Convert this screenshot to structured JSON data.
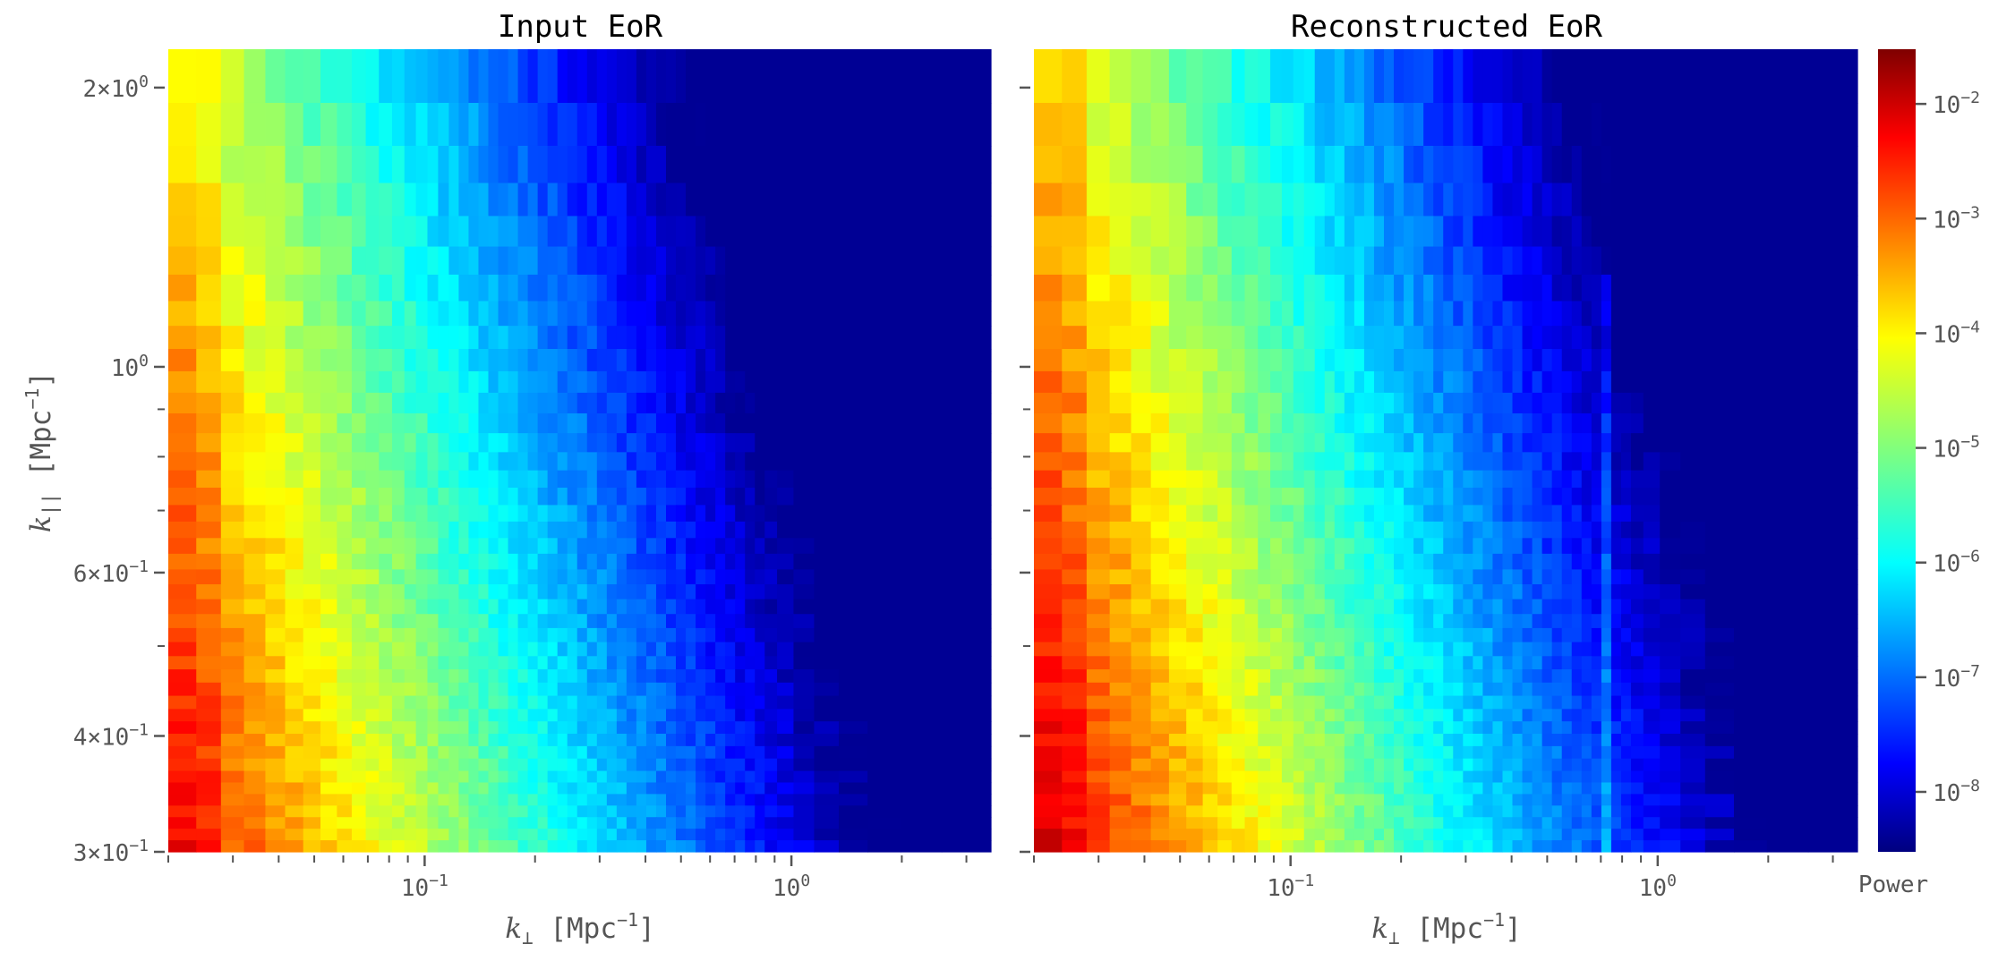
{
  "chart_data": [
    {
      "type": "heatmap",
      "title": "Input EoR",
      "xlabel_var": "k",
      "xlabel_sub": "⊥",
      "xlabel_unit": " [Mpc",
      "xlabel_exp": "−1",
      "xlabel_close": "]",
      "ylabel_var": "k",
      "ylabel_sub": "||",
      "ylabel_unit": " [Mpc",
      "ylabel_exp": "−1",
      "ylabel_close": "]",
      "x_scale": "log",
      "y_scale": "log",
      "xlim": [
        0.02,
        3.5
      ],
      "ylim": [
        0.3,
        2.2
      ],
      "x_ticks": [
        {
          "value": 0.1,
          "mantissa": "10",
          "exp": "−1"
        },
        {
          "value": 1,
          "mantissa": "10",
          "exp": "0"
        }
      ],
      "y_ticks": [
        {
          "value": 2,
          "mantissa": "2×10",
          "exp": "0"
        },
        {
          "value": 1,
          "mantissa": "10",
          "exp": "0"
        },
        {
          "value": 0.6,
          "mantissa": "6×10",
          "exp": "−1"
        },
        {
          "value": 0.4,
          "mantissa": "4×10",
          "exp": "−1"
        },
        {
          "value": 0.3,
          "mantissa": "3×10",
          "exp": "−1"
        }
      ],
      "colormap": "jet",
      "color_scale": "log",
      "power_range": [
        3e-09,
        0.03
      ],
      "approx_power_trend": "≈ 10^-2 at k⊥ ≈ 0.02–0.1 falling to ≈ 10^-8 at k⊥ > 0.7; lower k∥ is higher power",
      "grid": false
    },
    {
      "type": "heatmap",
      "title": "Reconstructed EoR",
      "xlabel_var": "k",
      "xlabel_sub": "⊥",
      "xlabel_unit": " [Mpc",
      "xlabel_exp": "−1",
      "xlabel_close": "]",
      "x_scale": "log",
      "y_scale": "log",
      "xlim": [
        0.02,
        3.5
      ],
      "ylim": [
        0.3,
        2.2
      ],
      "x_ticks": [
        {
          "value": 0.1,
          "mantissa": "10",
          "exp": "−1"
        },
        {
          "value": 1,
          "mantissa": "10",
          "exp": "0"
        }
      ],
      "colormap": "jet",
      "color_scale": "log",
      "power_range": [
        3e-09,
        0.03
      ],
      "feature": "narrow vertical bright stripe near k⊥ ≈ 0.7",
      "grid": false
    }
  ],
  "colorbar": {
    "label": "Power",
    "scale": "log",
    "range": [
      3e-09,
      0.03
    ],
    "ticks": [
      {
        "value": 0.01,
        "mantissa": "10",
        "exp": "−2"
      },
      {
        "value": 0.001,
        "mantissa": "10",
        "exp": "−3"
      },
      {
        "value": 0.0001,
        "mantissa": "10",
        "exp": "−4"
      },
      {
        "value": 1e-05,
        "mantissa": "10",
        "exp": "−5"
      },
      {
        "value": 1e-06,
        "mantissa": "10",
        "exp": "−6"
      },
      {
        "value": 1e-07,
        "mantissa": "10",
        "exp": "−7"
      },
      {
        "value": 1e-08,
        "mantissa": "10",
        "exp": "−8"
      }
    ]
  }
}
